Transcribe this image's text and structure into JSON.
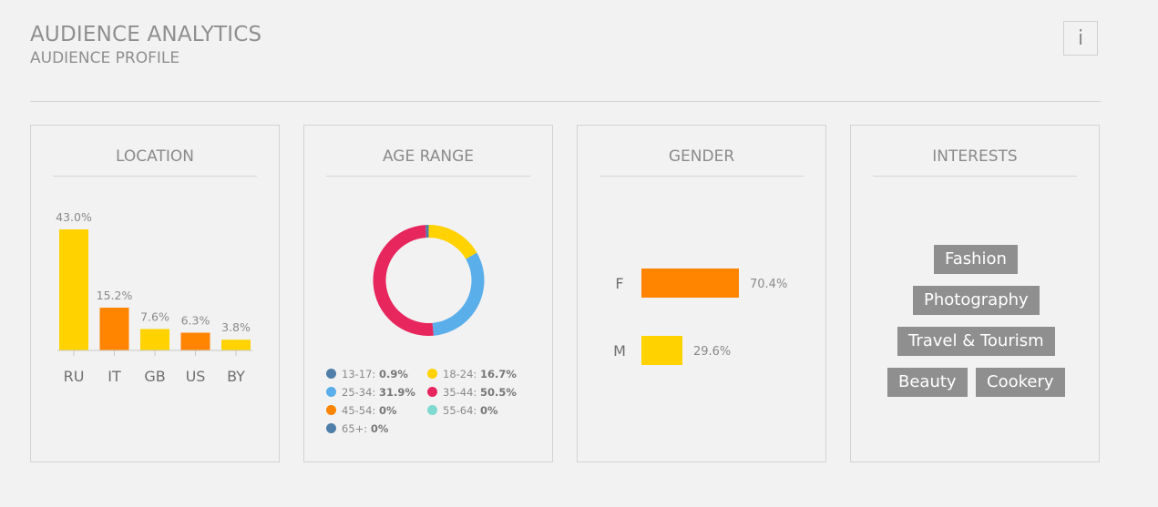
{
  "header": {
    "title": "AUDIENCE ANALYTICS",
    "subtitle": "AUDIENCE PROFILE",
    "info_label": "i"
  },
  "colors": {
    "yellow": "#ffd200",
    "orange": "#ff8400",
    "blue": "#5aaeea",
    "pink": "#e8265e",
    "steel": "#4f7fa8",
    "teal": "#7fd9cf",
    "tag_bg": "#8f8f8f"
  },
  "location": {
    "title": "LOCATION",
    "chart_data": {
      "type": "bar",
      "categories": [
        "RU",
        "IT",
        "GB",
        "US",
        "BY"
      ],
      "values": [
        43.0,
        15.2,
        7.6,
        6.3,
        3.8
      ],
      "value_labels": [
        "43.0%",
        "15.2%",
        "7.6%",
        "6.3%",
        "3.8%"
      ],
      "colors": [
        "#ffd200",
        "#ff8400",
        "#ffd200",
        "#ff8400",
        "#ffd200"
      ]
    }
  },
  "age": {
    "title": "AGE RANGE",
    "chart_data": {
      "type": "pie",
      "categories": [
        "13-17",
        "18-24",
        "25-34",
        "35-44",
        "45-54",
        "55-64",
        "65+"
      ],
      "values": [
        0.9,
        16.7,
        31.9,
        50.5,
        0,
        0,
        0
      ],
      "value_labels": [
        "0.9%",
        "16.7%",
        "31.9%",
        "50.5%",
        "0%",
        "0%",
        "0%"
      ],
      "colors": [
        "#4f7fa8",
        "#ffd200",
        "#5aaeea",
        "#e8265e",
        "#ff8400",
        "#7fd9cf",
        "#4f7fa8"
      ]
    }
  },
  "gender": {
    "title": "GENDER",
    "chart_data": {
      "type": "bar",
      "categories": [
        "F",
        "M"
      ],
      "values": [
        70.4,
        29.6
      ],
      "value_labels": [
        "70.4%",
        "29.6%"
      ],
      "colors": [
        "#ff8400",
        "#ffd200"
      ]
    }
  },
  "interests": {
    "title": "INTERESTS",
    "tags": [
      "Fashion",
      "Photography",
      "Travel & Tourism",
      "Beauty",
      "Cookery"
    ]
  }
}
